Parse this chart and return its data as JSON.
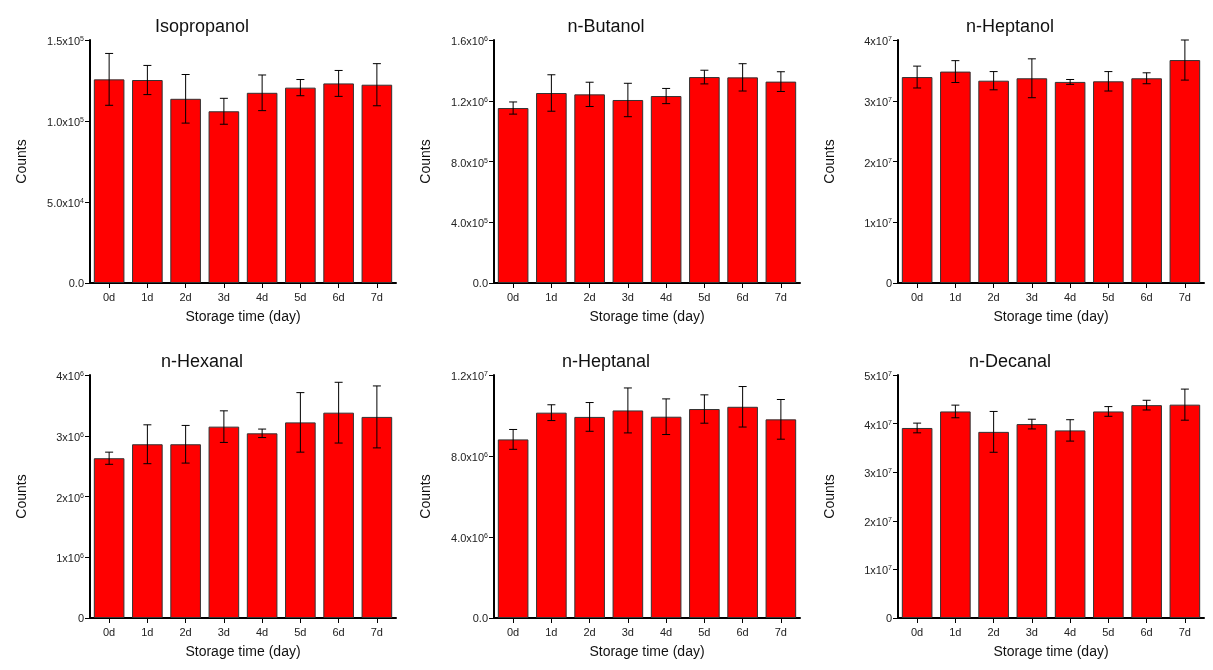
{
  "chart_data": [
    {
      "type": "bar",
      "title": "Isopropanol",
      "xlabel": "Storage time (day)",
      "ylabel": "Counts",
      "color": "#ff0000",
      "categories": [
        "0d",
        "1d",
        "2d",
        "3d",
        "4d",
        "5d",
        "6d",
        "7d"
      ],
      "values": [
        125700,
        125300,
        113700,
        106000,
        117400,
        120600,
        123200,
        122400
      ],
      "errors": [
        16000,
        9000,
        15000,
        8000,
        11000,
        5000,
        8000,
        13000
      ],
      "ylim": [
        0,
        150000
      ],
      "yticks": [
        {
          "value": 0,
          "label": "0.0"
        },
        {
          "value": 50000,
          "label": "5.0x10$^{4}$"
        },
        {
          "value": 100000,
          "label": "1.0x10$^{5}$"
        },
        {
          "value": 150000,
          "label": "1.5x10$^{5}$"
        }
      ]
    },
    {
      "type": "bar",
      "title": "n-Butanol",
      "xlabel": "Storage time (day)",
      "ylabel": "Counts",
      "color": "#ff0000",
      "categories": [
        "0d",
        "1d",
        "2d",
        "3d",
        "4d",
        "5d",
        "6d",
        "7d"
      ],
      "values": [
        1152000,
        1251000,
        1242000,
        1205000,
        1231000,
        1356000,
        1354000,
        1326000
      ],
      "errors": [
        40000,
        120000,
        80000,
        110000,
        50000,
        45000,
        90000,
        65000
      ],
      "ylim": [
        0,
        1600000
      ],
      "yticks": [
        {
          "value": 0,
          "label": "0.0"
        },
        {
          "value": 400000,
          "label": "4.0x10$^{5}$"
        },
        {
          "value": 800000,
          "label": "8.0x10$^{5}$"
        },
        {
          "value": 1200000,
          "label": "1.2x10$^{6}$"
        },
        {
          "value": 1600000,
          "label": "1.6x10$^{6}$"
        }
      ]
    },
    {
      "type": "bar",
      "title": "n-Heptanol",
      "xlabel": "Storage time (day)",
      "ylabel": "Counts",
      "color": "#ff0000",
      "categories": [
        "0d",
        "1d",
        "2d",
        "3d",
        "4d",
        "5d",
        "6d",
        "7d"
      ],
      "values": [
        33900000,
        34800000,
        33300000,
        33700000,
        33100000,
        33200000,
        33700000,
        36700000
      ],
      "errors": [
        1800000,
        1800000,
        1500000,
        3200000,
        400000,
        1600000,
        900000,
        3300000
      ],
      "ylim": [
        0,
        40000000
      ],
      "yticks": [
        {
          "value": 0,
          "label": "0"
        },
        {
          "value": 10000000,
          "label": "1x10$^{7}$"
        },
        {
          "value": 20000000,
          "label": "2x10$^{7}$"
        },
        {
          "value": 30000000,
          "label": "3x10$^{7}$"
        },
        {
          "value": 40000000,
          "label": "4x10$^{7}$"
        }
      ]
    },
    {
      "type": "bar",
      "title": "n-Hexanal",
      "xlabel": "Storage time (day)",
      "ylabel": "Counts",
      "color": "#ff0000",
      "categories": [
        "0d",
        "1d",
        "2d",
        "3d",
        "4d",
        "5d",
        "6d",
        "7d"
      ],
      "values": [
        2630000,
        2860000,
        2860000,
        3150000,
        3040000,
        3220000,
        3380000,
        3310000
      ],
      "errors": [
        100000,
        320000,
        310000,
        260000,
        70000,
        490000,
        500000,
        510000
      ],
      "ylim": [
        0,
        4000000
      ],
      "yticks": [
        {
          "value": 0,
          "label": "0"
        },
        {
          "value": 1000000,
          "label": "1x10$^{6}$"
        },
        {
          "value": 2000000,
          "label": "2x10$^{6}$"
        },
        {
          "value": 3000000,
          "label": "3x10$^{6}$"
        },
        {
          "value": 4000000,
          "label": "4x10$^{6}$"
        }
      ]
    },
    {
      "type": "bar",
      "title": "n-Heptanal",
      "xlabel": "Storage time (day)",
      "ylabel": "Counts",
      "color": "#ff0000",
      "categories": [
        "0d",
        "1d",
        "2d",
        "3d",
        "4d",
        "5d",
        "6d",
        "7d"
      ],
      "values": [
        8820000,
        10140000,
        9930000,
        10250000,
        9940000,
        10320000,
        10430000,
        9810000
      ],
      "errors": [
        490000,
        390000,
        710000,
        1110000,
        880000,
        700000,
        1000000,
        980000
      ],
      "ylim": [
        0,
        12000000
      ],
      "yticks": [
        {
          "value": 0,
          "label": "0.0"
        },
        {
          "value": 4000000,
          "label": "4.0x10$^{6}$"
        },
        {
          "value": 8000000,
          "label": "8.0x10$^{6}$"
        },
        {
          "value": 12000000,
          "label": "1.2x10$^{7}$"
        }
      ]
    },
    {
      "type": "bar",
      "title": "n-Decanal",
      "xlabel": "Storage time (day)",
      "ylabel": "Counts",
      "color": "#ff0000",
      "categories": [
        "0d",
        "1d",
        "2d",
        "3d",
        "4d",
        "5d",
        "6d",
        "7d"
      ],
      "values": [
        39100000,
        42500000,
        38300000,
        39900000,
        38600000,
        42500000,
        43800000,
        43900000
      ],
      "errors": [
        1000000,
        1300000,
        4200000,
        1000000,
        2200000,
        1000000,
        1000000,
        3200000
      ],
      "ylim": [
        0,
        50000000
      ],
      "yticks": [
        {
          "value": 0,
          "label": "0"
        },
        {
          "value": 10000000,
          "label": "1x10$^{7}$"
        },
        {
          "value": 20000000,
          "label": "2x10$^{7}$"
        },
        {
          "value": 30000000,
          "label": "3x10$^{7}$"
        },
        {
          "value": 40000000,
          "label": "4x10$^{7}$"
        },
        {
          "value": 50000000,
          "label": "5x10$^{7}$"
        }
      ]
    }
  ]
}
